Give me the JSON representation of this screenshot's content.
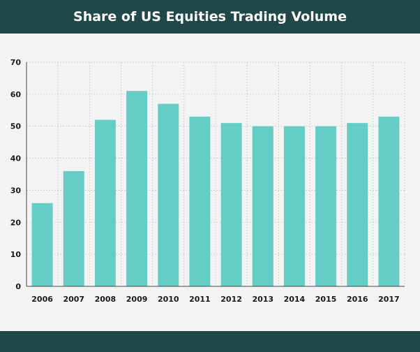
{
  "header": {
    "title": "Share of US Equities Trading Volume"
  },
  "colors": {
    "header_bg": "#214848",
    "bar": "#66ccc6",
    "background": "#f2f3f2"
  },
  "chart_data": {
    "type": "bar",
    "title": "Share of US Equities Trading Volume",
    "xlabel": "",
    "ylabel": "",
    "categories": [
      "2006",
      "2007",
      "2008",
      "2009",
      "2010",
      "2011",
      "2012",
      "2013",
      "2014",
      "2015",
      "2016",
      "2017"
    ],
    "values": [
      26,
      36,
      52,
      61,
      57,
      53,
      51,
      50,
      50,
      50,
      51,
      53
    ],
    "ylim": [
      0,
      70
    ],
    "yticks": [
      0,
      10,
      20,
      30,
      40,
      50,
      60,
      70
    ],
    "grid": true,
    "legend": "none"
  }
}
